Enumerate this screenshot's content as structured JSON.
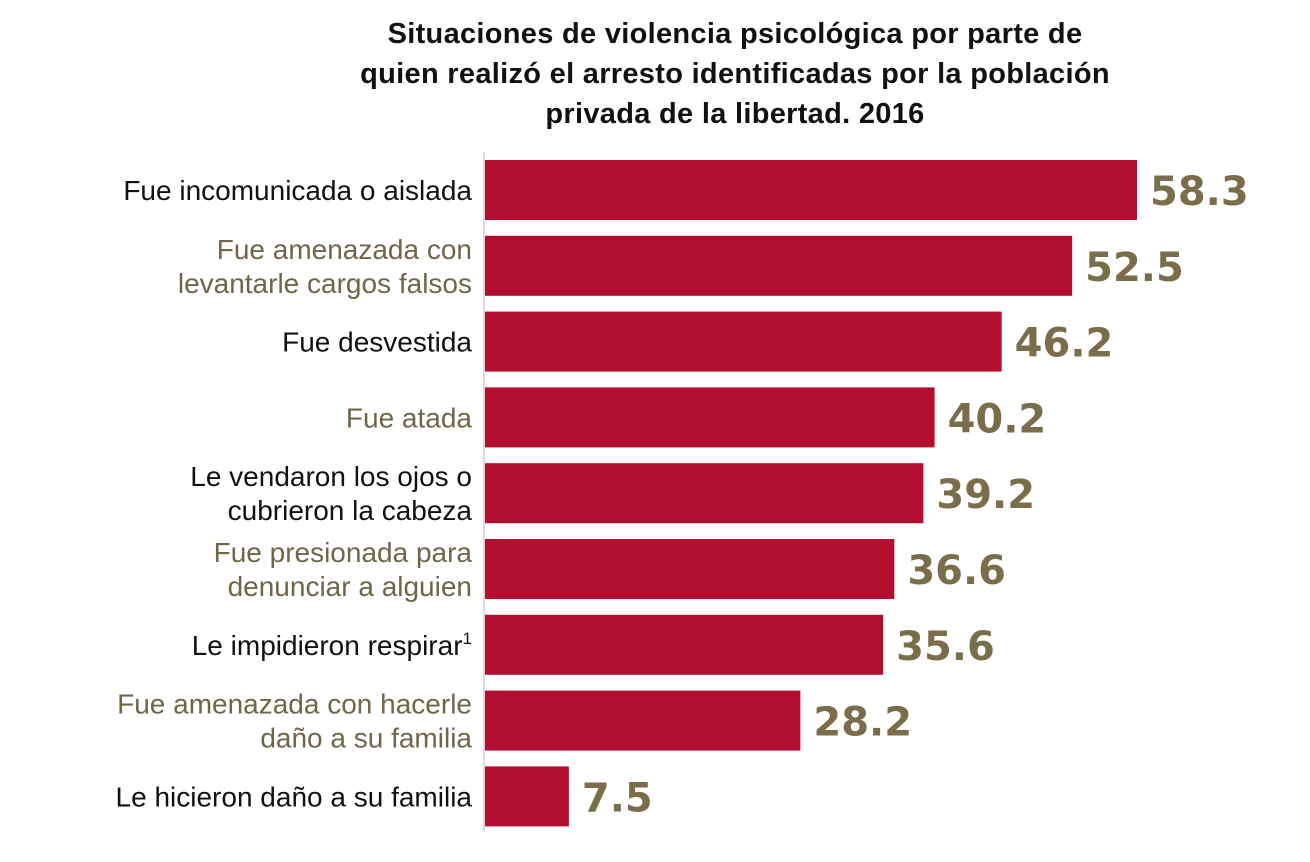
{
  "chart_data": {
    "type": "bar",
    "orientation": "horizontal",
    "title": "Situaciones de violencia psicológica por parte de quien realizó el arresto identificadas por la población privada de la libertad. 2016",
    "title_lines": [
      "Situaciones de violencia psicológica por parte de",
      "quien realizó el arresto identificadas por la población",
      "privada de la libertad. 2016"
    ],
    "xlabel": "",
    "ylabel": "",
    "xlim": [
      0,
      58.3
    ],
    "grid": false,
    "categories": [
      {
        "lines": [
          "Fue incomunicada o aislada"
        ],
        "sup": ""
      },
      {
        "lines": [
          "Fue amenazada con",
          "levantarle cargos falsos"
        ],
        "sup": ""
      },
      {
        "lines": [
          "Fue desvestida"
        ],
        "sup": ""
      },
      {
        "lines": [
          "Fue atada"
        ],
        "sup": ""
      },
      {
        "lines": [
          "Le vendaron los ojos o",
          "cubrieron la cabeza"
        ],
        "sup": ""
      },
      {
        "lines": [
          "Fue presionada para",
          "denunciar a alguien"
        ],
        "sup": ""
      },
      {
        "lines": [
          "Le impidieron respirar"
        ],
        "sup": "1"
      },
      {
        "lines": [
          "Fue amenazada con hacerle",
          "daño a su familia"
        ],
        "sup": ""
      },
      {
        "lines": [
          "Le hicieron daño a su familia"
        ],
        "sup": ""
      }
    ],
    "values": [
      58.3,
      52.5,
      46.2,
      40.2,
      39.2,
      36.6,
      35.6,
      28.2,
      7.5
    ],
    "value_labels": [
      "58.3",
      "52.5",
      "46.2",
      "40.2",
      "39.2",
      "36.6",
      "35.6",
      "28.2",
      "7.5"
    ],
    "colors": {
      "bar": "#b30e2f",
      "value_label": "#7a6e4a",
      "label_dark": "#111111",
      "label_muted": "#6f6648",
      "axis": "#cfcfcf"
    }
  }
}
